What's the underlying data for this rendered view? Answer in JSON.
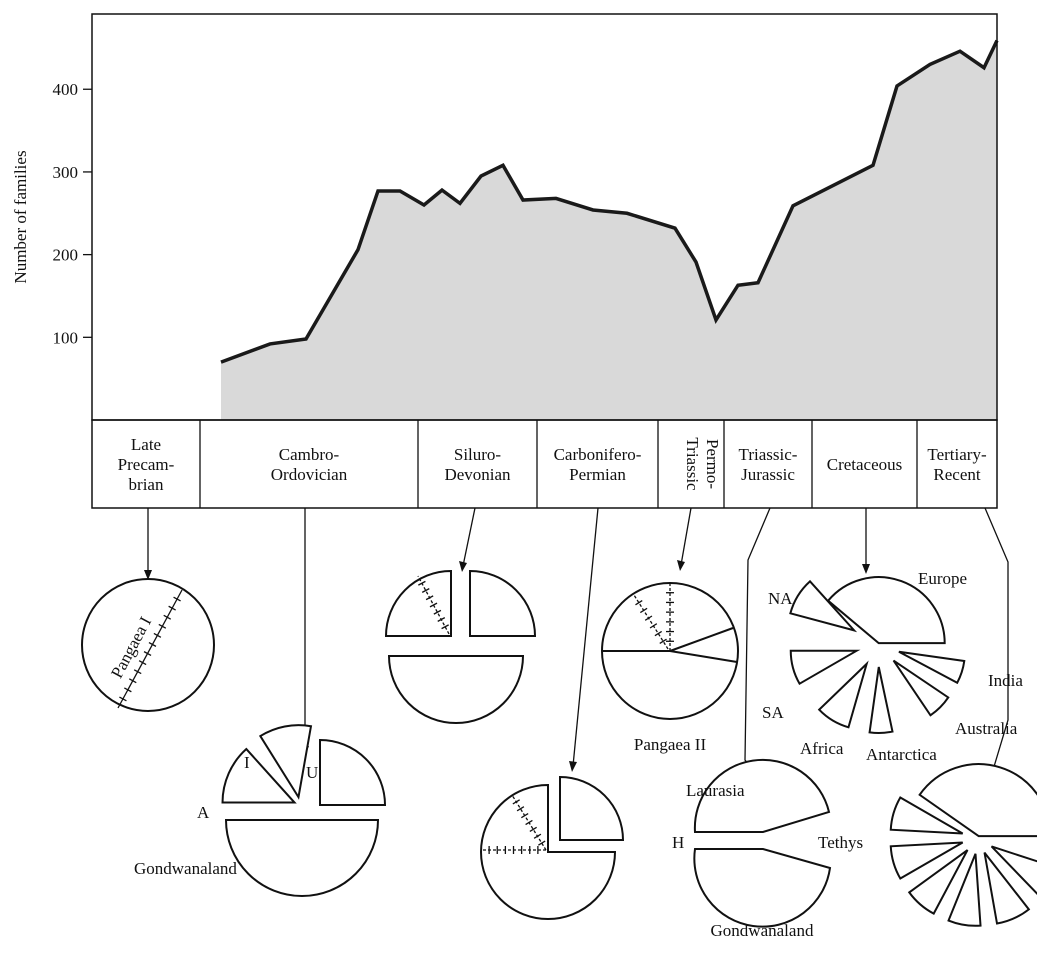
{
  "chart_data": {
    "type": "area",
    "y_label": "Number of families",
    "x": [
      129,
      178,
      214,
      266,
      286,
      308,
      332,
      350,
      368,
      389,
      411,
      431,
      464,
      501,
      535,
      583,
      604,
      624,
      646,
      666,
      701,
      781,
      805,
      838,
      868,
      892,
      905
    ],
    "values": [
      70,
      92,
      98,
      206,
      277,
      277,
      260,
      278,
      262,
      295,
      308,
      266,
      268,
      254,
      250,
      232,
      191,
      121,
      163,
      166,
      259,
      308,
      404,
      430,
      446,
      426,
      459
    ],
    "xlim": [
      0,
      905
    ],
    "ylim": [
      0,
      491
    ],
    "yticks": [
      100,
      200,
      300,
      400
    ],
    "color": "#d9d9d9",
    "line_color": "#1a1a1a"
  },
  "periods": [
    {
      "lines": [
        "Late",
        "Precam-",
        "brian"
      ]
    },
    {
      "lines": [
        "Cambro-",
        "Ordovician"
      ]
    },
    {
      "lines": [
        "Siluro-",
        "Devonian"
      ]
    },
    {
      "lines": [
        "Carbonifero-",
        "Permian"
      ]
    },
    {
      "lines": [
        "Permo-",
        "Triassic"
      ]
    },
    {
      "lines": [
        "Triassic-",
        "Jurassic"
      ]
    },
    {
      "lines": [
        "Cretaceous"
      ]
    },
    {
      "lines": [
        "Tertiary-",
        "Recent"
      ]
    }
  ],
  "diagrams": {
    "pangaea_1": "Pangaea I",
    "cambro": {
      "i": "I",
      "u": "U",
      "a": "A",
      "gondwanaland": "Gondwanaland"
    },
    "pangaea_2": "Pangaea II",
    "triassic": {
      "laurasia": "Laurasia",
      "tethys": "Tethys",
      "h": "H",
      "gondwanaland": "Gondwanaland"
    },
    "cretaceous": {
      "na": "NA",
      "europe": "Europe",
      "sa": "SA",
      "india": "India",
      "africa": "Africa",
      "antarctica": "Antarctica",
      "australia": "Australia"
    }
  }
}
